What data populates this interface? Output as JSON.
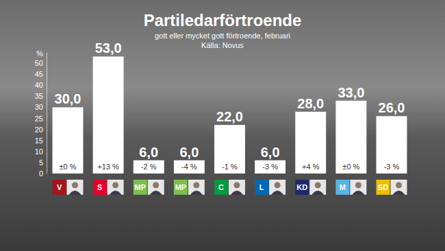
{
  "chart_data": {
    "type": "bar",
    "title": "Partiledarförtroende",
    "subtitle": "gott eller mycket gott förtroende, februari",
    "source": "Källa: Novus",
    "ylabel": "%",
    "categories": [
      "V",
      "S",
      "MP",
      "MP",
      "C",
      "L",
      "KD",
      "M",
      "SD"
    ],
    "values": [
      30,
      53,
      6,
      6,
      22,
      6,
      28,
      33,
      26
    ],
    "value_labels": [
      "30,0",
      "53,0",
      "6,0",
      "6,0",
      "22,0",
      "6,0",
      "28,0",
      "33,0",
      "26,0"
    ],
    "change_labels": [
      "±0 %",
      "+13 %",
      "-2 %",
      "-4 %",
      "-1 %",
      "-3 %",
      "+4 %",
      "±0 %",
      "-3 %"
    ],
    "color": "#ffffff",
    "ylim": [
      0,
      55
    ],
    "yticks": [
      0,
      5,
      10,
      15,
      20,
      25,
      30,
      35,
      40,
      45,
      50
    ],
    "grid": false,
    "data_labels": true
  }
}
